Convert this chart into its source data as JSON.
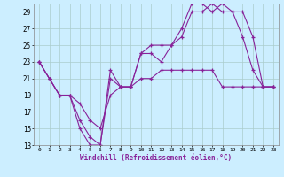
{
  "bg_color": "#cceeff",
  "grid_color": "#aacccc",
  "line_color": "#882299",
  "xlabel": "Windchill (Refroidissement éolien,°C)",
  "hours": [
    0,
    1,
    2,
    3,
    4,
    5,
    6,
    7,
    8,
    9,
    10,
    11,
    12,
    13,
    14,
    15,
    16,
    17,
    18,
    19,
    20,
    21,
    22,
    23
  ],
  "series": [
    [
      23,
      21,
      19,
      19,
      15,
      13,
      13,
      21,
      20,
      20,
      24,
      24,
      23,
      25,
      27,
      30,
      30,
      29,
      30,
      29,
      26,
      22,
      20,
      20
    ],
    [
      23,
      21,
      19,
      19,
      16,
      14,
      13,
      22,
      20,
      20,
      24,
      25,
      25,
      25,
      26,
      29,
      29,
      30,
      29,
      29,
      29,
      26,
      20,
      20
    ],
    [
      23,
      21,
      19,
      19,
      18,
      16,
      15,
      19,
      20,
      20,
      21,
      21,
      22,
      22,
      22,
      22,
      22,
      22,
      20,
      20,
      20,
      20,
      20,
      20
    ]
  ],
  "ylim": [
    13,
    30
  ],
  "yticks": [
    13,
    15,
    17,
    19,
    21,
    23,
    25,
    27,
    29
  ],
  "xlim": [
    -0.5,
    23.5
  ]
}
